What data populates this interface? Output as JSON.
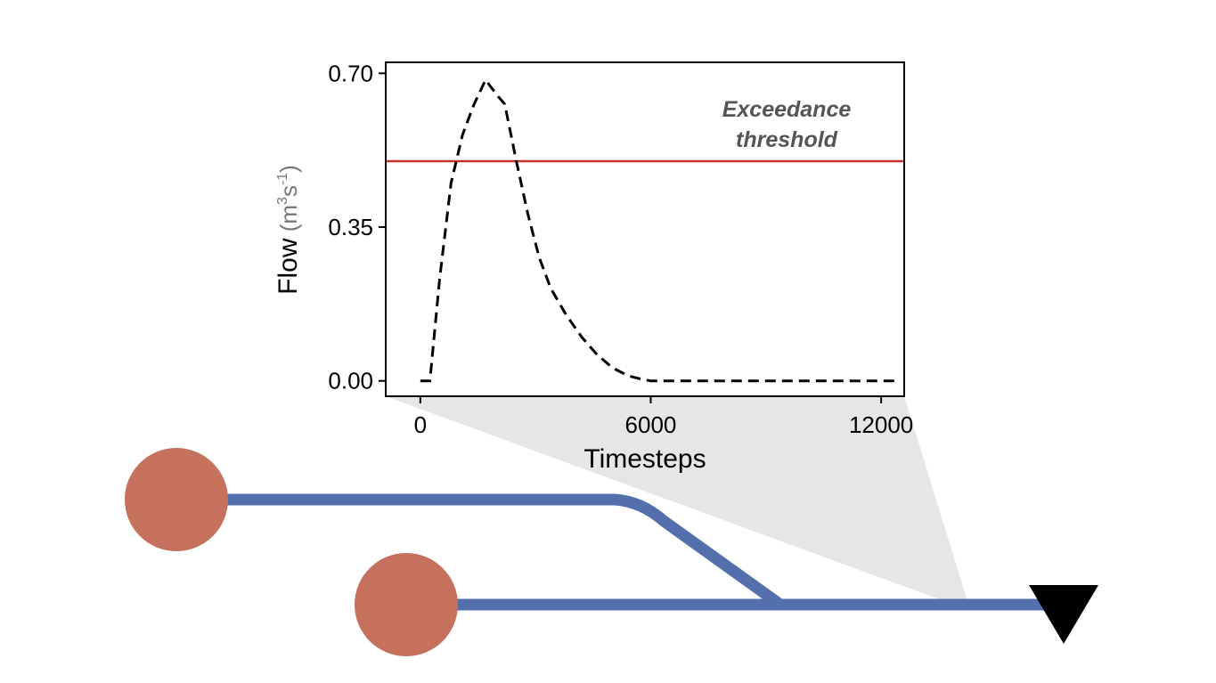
{
  "chart_data": {
    "type": "line",
    "xlabel": "Timesteps",
    "ylabel": "Flow",
    "ylabel_unit": {
      "base": "m",
      "exp1": "3",
      "mid": "s",
      "exp2": "-1"
    },
    "xlim": [
      -900,
      12600
    ],
    "ylim": [
      -0.035,
      0.725
    ],
    "x_ticks": [
      0,
      6000,
      12000
    ],
    "x_tick_labels": [
      "0",
      "6000",
      "12000"
    ],
    "y_ticks": [
      0.0,
      0.35,
      0.7
    ],
    "y_tick_labels": [
      "0.00",
      "0.35",
      "0.70"
    ],
    "grid": false,
    "series": [
      {
        "style": "dashed",
        "color": "#000000",
        "x": [
          0,
          250,
          500,
          800,
          1100,
          1400,
          1700,
          2000,
          2200,
          2500,
          2800,
          3100,
          3400,
          3800,
          4200,
          4600,
          5000,
          5400,
          5800,
          6000,
          7000,
          8000,
          9000,
          10000,
          11000,
          12500
        ],
        "y": [
          0.0,
          0.0,
          0.23,
          0.45,
          0.56,
          0.63,
          0.685,
          0.65,
          0.63,
          0.5,
          0.38,
          0.28,
          0.21,
          0.15,
          0.1,
          0.06,
          0.03,
          0.012,
          0.003,
          0.0,
          0.0,
          0.0,
          0.0,
          0.0,
          0.0,
          0.0
        ]
      }
    ],
    "threshold": {
      "value": 0.5,
      "color": "#c8312a"
    },
    "annotation": {
      "line1": "Exceedance",
      "line2": "threshold"
    }
  },
  "network": {
    "pipe_color": "#5470ac",
    "source_color": "#c6715e",
    "outlet_color": "#000000",
    "callout_color": "#e6e6e6"
  }
}
